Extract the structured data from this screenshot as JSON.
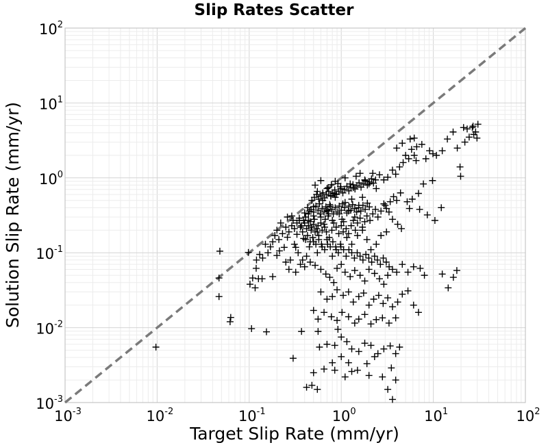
{
  "chart_data": {
    "type": "scatter",
    "title": "Slip Rates Scatter",
    "xlabel": "Target Slip Rate (mm/yr)",
    "ylabel": "Solution Slip Rate (mm/yr)",
    "xscale": "log",
    "yscale": "log",
    "xlim": [
      0.001,
      100
    ],
    "ylim": [
      0.001,
      100
    ],
    "grid": true,
    "marker": "+",
    "marker_color": "#000000",
    "reference_line": {
      "style": "dashed",
      "color": "#7a7a7a",
      "from": [
        0.001,
        0.001
      ],
      "to": [
        100,
        100
      ]
    },
    "x_ticks": [
      {
        "base": "10",
        "exp": "-3"
      },
      {
        "base": "10",
        "exp": "-2"
      },
      {
        "base": "10",
        "exp": "-1"
      },
      {
        "base": "10",
        "exp": "0"
      },
      {
        "base": "10",
        "exp": "1"
      },
      {
        "base": "10",
        "exp": "2"
      }
    ],
    "y_ticks": [
      {
        "base": "10",
        "exp": "-3"
      },
      {
        "base": "10",
        "exp": "-2"
      },
      {
        "base": "10",
        "exp": "-1"
      },
      {
        "base": "10",
        "exp": "0"
      },
      {
        "base": "10",
        "exp": "1"
      },
      {
        "base": "10",
        "exp": "2"
      }
    ],
    "points": [
      [
        0.0097,
        0.0055
      ],
      [
        0.048,
        0.105
      ],
      [
        0.047,
        0.046
      ],
      [
        0.047,
        0.026
      ],
      [
        0.098,
        0.101
      ],
      [
        0.062,
        0.012
      ],
      [
        0.063,
        0.0137
      ],
      [
        0.119,
        0.062
      ],
      [
        0.102,
        0.038
      ],
      [
        0.116,
        0.034
      ],
      [
        0.126,
        0.045
      ],
      [
        0.109,
        0.046
      ],
      [
        0.138,
        0.045
      ],
      [
        0.106,
        0.0097
      ],
      [
        0.154,
        0.0088
      ],
      [
        0.2,
        0.092
      ],
      [
        0.213,
        0.106
      ],
      [
        0.24,
        0.118
      ],
      [
        0.3,
        0.0039
      ],
      [
        0.25,
        0.075
      ],
      [
        0.18,
        0.048
      ],
      [
        0.37,
        0.0089
      ],
      [
        0.56,
        0.0089
      ],
      [
        0.92,
        0.0095
      ],
      [
        0.26,
        0.161
      ],
      [
        0.32,
        0.118
      ],
      [
        0.33,
        0.176
      ],
      [
        0.39,
        0.155
      ],
      [
        0.29,
        0.31
      ],
      [
        0.36,
        0.22
      ],
      [
        0.35,
        0.27
      ],
      [
        0.4,
        0.34
      ],
      [
        0.44,
        0.23
      ],
      [
        0.47,
        0.2
      ],
      [
        0.41,
        0.3
      ],
      [
        0.38,
        0.19
      ],
      [
        0.44,
        0.27
      ],
      [
        0.5,
        0.24
      ],
      [
        0.55,
        0.19
      ],
      [
        0.6,
        0.3
      ],
      [
        0.66,
        0.22
      ],
      [
        0.72,
        0.31
      ],
      [
        0.8,
        0.27
      ],
      [
        0.5,
        0.31
      ],
      [
        0.45,
        0.36
      ],
      [
        0.43,
        0.4
      ],
      [
        0.5,
        0.41
      ],
      [
        0.58,
        0.45
      ],
      [
        0.63,
        0.5
      ],
      [
        0.7,
        0.37
      ],
      [
        0.76,
        0.42
      ],
      [
        0.86,
        0.55
      ],
      [
        0.95,
        0.33
      ],
      [
        1.02,
        0.28
      ],
      [
        1.1,
        0.47
      ],
      [
        1.2,
        0.36
      ],
      [
        1.3,
        0.52
      ],
      [
        1.4,
        0.3
      ],
      [
        1.55,
        0.43
      ],
      [
        1.7,
        0.55
      ],
      [
        0.52,
        0.8
      ],
      [
        0.55,
        0.66
      ],
      [
        0.6,
        0.92
      ],
      [
        0.7,
        0.72
      ],
      [
        0.77,
        0.58
      ],
      [
        0.85,
        0.61
      ],
      [
        0.92,
        0.84
      ],
      [
        0.98,
        0.76
      ],
      [
        1.1,
        1.0
      ],
      [
        1.25,
        0.83
      ],
      [
        1.36,
        0.74
      ],
      [
        1.45,
        1.05
      ],
      [
        1.6,
        1.15
      ],
      [
        1.8,
        0.94
      ],
      [
        2.0,
        0.83
      ],
      [
        2.2,
        1.15
      ],
      [
        2.4,
        0.72
      ],
      [
        2.6,
        1.1
      ],
      [
        2.9,
        0.94
      ],
      [
        3.2,
        1.02
      ],
      [
        3.6,
        1.27
      ],
      [
        3.9,
        1.12
      ],
      [
        4.3,
        1.4
      ],
      [
        4.7,
        1.6
      ],
      [
        5.0,
        2.0
      ],
      [
        5.4,
        1.8
      ],
      [
        5.8,
        2.4
      ],
      [
        6.2,
        2.0
      ],
      [
        6.6,
        2.6
      ],
      [
        5.6,
        3.3
      ],
      [
        4.6,
        2.9
      ],
      [
        4.0,
        2.5
      ],
      [
        6.2,
        3.4
      ],
      [
        6.5,
        1.7
      ],
      [
        7.5,
        2.8
      ],
      [
        8.3,
        1.8
      ],
      [
        9.1,
        2.3
      ],
      [
        9.9,
        2.1
      ],
      [
        10.8,
        2.0
      ],
      [
        12.5,
        2.3
      ],
      [
        14.2,
        3.3
      ],
      [
        16.4,
        4.1
      ],
      [
        18.2,
        2.5
      ],
      [
        19.5,
        1.4
      ],
      [
        21.3,
        4.7
      ],
      [
        23.3,
        4.5
      ],
      [
        24.5,
        3.5
      ],
      [
        27.0,
        4.9
      ],
      [
        28.8,
        4.1
      ],
      [
        29.8,
        3.4
      ],
      [
        30.5,
        5.2
      ],
      [
        26.5,
        4.7
      ],
      [
        22.0,
        3.0
      ],
      [
        27.5,
        3.8
      ],
      [
        19.8,
        1.05
      ],
      [
        9.8,
        0.92
      ],
      [
        7.8,
        0.83
      ],
      [
        6.9,
        0.62
      ],
      [
        5.9,
        0.52
      ],
      [
        5.2,
        0.48
      ],
      [
        5.5,
        0.39
      ],
      [
        7.1,
        0.38
      ],
      [
        8.6,
        0.32
      ],
      [
        10.4,
        0.27
      ],
      [
        12.2,
        0.4
      ],
      [
        3.0,
        0.43
      ],
      [
        3.3,
        0.35
      ],
      [
        3.6,
        0.28
      ],
      [
        4.1,
        0.24
      ],
      [
        4.5,
        0.21
      ],
      [
        3.1,
        0.19
      ],
      [
        2.7,
        0.17
      ],
      [
        2.4,
        0.13
      ],
      [
        2.1,
        0.11
      ],
      [
        1.9,
        0.15
      ],
      [
        1.7,
        0.2
      ],
      [
        1.5,
        0.17
      ],
      [
        1.3,
        0.13
      ],
      [
        1.15,
        0.16
      ],
      [
        1.05,
        0.19
      ],
      [
        0.98,
        0.13
      ],
      [
        0.88,
        0.11
      ],
      [
        0.8,
        0.09
      ],
      [
        0.7,
        0.15
      ],
      [
        0.62,
        0.12
      ],
      [
        0.55,
        0.1
      ],
      [
        0.5,
        0.14
      ],
      [
        0.45,
        0.12
      ],
      [
        0.42,
        0.09
      ],
      [
        0.38,
        0.08
      ],
      [
        0.34,
        0.1
      ],
      [
        0.31,
        0.13
      ],
      [
        0.28,
        0.08
      ],
      [
        0.27,
        0.06
      ],
      [
        0.32,
        0.055
      ],
      [
        0.36,
        0.07
      ],
      [
        0.4,
        0.065
      ],
      [
        0.46,
        0.075
      ],
      [
        0.52,
        0.068
      ],
      [
        0.6,
        0.06
      ],
      [
        0.68,
        0.052
      ],
      [
        0.75,
        0.047
      ],
      [
        0.83,
        0.04
      ],
      [
        0.9,
        0.062
      ],
      [
        1.0,
        0.07
      ],
      [
        1.1,
        0.055
      ],
      [
        1.25,
        0.048
      ],
      [
        1.4,
        0.058
      ],
      [
        1.6,
        0.05
      ],
      [
        1.8,
        0.042
      ],
      [
        2.0,
        0.06
      ],
      [
        2.3,
        0.053
      ],
      [
        2.6,
        0.045
      ],
      [
        2.9,
        0.038
      ],
      [
        3.2,
        0.05
      ],
      [
        3.6,
        0.06
      ],
      [
        4.0,
        0.055
      ],
      [
        4.6,
        0.07
      ],
      [
        5.3,
        0.055
      ],
      [
        6.1,
        0.065
      ],
      [
        7.2,
        0.062
      ],
      [
        8.0,
        0.05
      ],
      [
        12.5,
        0.052
      ],
      [
        14.5,
        0.034
      ],
      [
        16.5,
        0.047
      ],
      [
        18.0,
        0.058
      ],
      [
        0.6,
        0.03
      ],
      [
        0.7,
        0.024
      ],
      [
        0.8,
        0.026
      ],
      [
        0.9,
        0.032
      ],
      [
        1.05,
        0.027
      ],
      [
        1.2,
        0.03
      ],
      [
        1.35,
        0.022
      ],
      [
        1.55,
        0.026
      ],
      [
        1.75,
        0.029
      ],
      [
        2.0,
        0.02
      ],
      [
        2.25,
        0.024
      ],
      [
        2.55,
        0.027
      ],
      [
        2.85,
        0.021
      ],
      [
        3.2,
        0.025
      ],
      [
        3.6,
        0.019
      ],
      [
        4.1,
        0.022
      ],
      [
        4.6,
        0.028
      ],
      [
        5.3,
        0.031
      ],
      [
        6.1,
        0.02
      ],
      [
        6.9,
        0.016
      ],
      [
        0.5,
        0.017
      ],
      [
        0.56,
        0.013
      ],
      [
        0.65,
        0.016
      ],
      [
        0.78,
        0.014
      ],
      [
        0.9,
        0.0125
      ],
      [
        1.02,
        0.016
      ],
      [
        1.2,
        0.014
      ],
      [
        1.4,
        0.0115
      ],
      [
        1.55,
        0.013
      ],
      [
        1.8,
        0.015
      ],
      [
        2.1,
        0.0112
      ],
      [
        2.4,
        0.0128
      ],
      [
        2.8,
        0.0135
      ],
      [
        3.3,
        0.0115
      ],
      [
        3.9,
        0.0135
      ],
      [
        0.58,
        0.0055
      ],
      [
        0.7,
        0.006
      ],
      [
        0.85,
        0.0058
      ],
      [
        1.0,
        0.0075
      ],
      [
        1.15,
        0.0065
      ],
      [
        1.3,
        0.0052
      ],
      [
        1.55,
        0.0048
      ],
      [
        1.8,
        0.0062
      ],
      [
        2.1,
        0.0058
      ],
      [
        2.5,
        0.0045
      ],
      [
        2.9,
        0.0052
      ],
      [
        3.4,
        0.0057
      ],
      [
        3.9,
        0.0045
      ],
      [
        4.3,
        0.0055
      ],
      [
        0.5,
        0.0025
      ],
      [
        0.65,
        0.0028
      ],
      [
        0.8,
        0.0034
      ],
      [
        1.0,
        0.0041
      ],
      [
        1.2,
        0.0034
      ],
      [
        1.5,
        0.0027
      ],
      [
        1.9,
        0.0033
      ],
      [
        2.3,
        0.0041
      ],
      [
        2.8,
        0.0022
      ],
      [
        3.5,
        0.0029
      ],
      [
        3.9,
        0.002
      ],
      [
        0.42,
        0.0016
      ],
      [
        0.48,
        0.0017
      ],
      [
        0.55,
        0.0015
      ],
      [
        0.85,
        0.0027
      ],
      [
        1.1,
        0.0022
      ],
      [
        1.3,
        0.0026
      ],
      [
        2.0,
        0.0023
      ],
      [
        3.2,
        0.0015
      ],
      [
        3.6,
        0.0011
      ],
      [
        0.72,
        0.74
      ],
      [
        0.78,
        0.81
      ],
      [
        0.86,
        0.9
      ],
      [
        0.73,
        0.33
      ],
      [
        0.67,
        0.28
      ],
      [
        0.6,
        0.25
      ],
      [
        0.56,
        0.23
      ],
      [
        0.54,
        0.21
      ],
      [
        0.51,
        0.28
      ],
      [
        0.48,
        0.22
      ],
      [
        0.46,
        0.26
      ],
      [
        0.52,
        0.19
      ],
      [
        0.57,
        0.17
      ],
      [
        0.62,
        0.2
      ],
      [
        0.65,
        0.24
      ],
      [
        0.69,
        0.19
      ],
      [
        0.74,
        0.16
      ],
      [
        0.79,
        0.2
      ],
      [
        0.83,
        0.25
      ],
      [
        0.88,
        0.22
      ],
      [
        0.94,
        0.18
      ],
      [
        1.0,
        0.23
      ],
      [
        1.06,
        0.26
      ],
      [
        1.13,
        0.21
      ],
      [
        1.2,
        0.18
      ],
      [
        1.28,
        0.23
      ],
      [
        1.35,
        0.27
      ],
      [
        1.42,
        0.2
      ],
      [
        1.5,
        0.25
      ],
      [
        1.6,
        0.29
      ],
      [
        1.7,
        0.22
      ],
      [
        1.8,
        0.26
      ],
      [
        1.9,
        0.31
      ],
      [
        2.05,
        0.27
      ],
      [
        2.2,
        0.33
      ],
      [
        2.35,
        0.38
      ],
      [
        2.5,
        0.3
      ],
      [
        2.7,
        0.36
      ],
      [
        2.9,
        0.45
      ],
      [
        3.1,
        0.39
      ],
      [
        3.4,
        0.48
      ],
      [
        3.7,
        0.56
      ],
      [
        4.0,
        0.5
      ],
      [
        4.4,
        0.63
      ],
      [
        0.4,
        0.25
      ],
      [
        0.42,
        0.21
      ],
      [
        0.39,
        0.27
      ],
      [
        0.37,
        0.23
      ],
      [
        0.35,
        0.29
      ],
      [
        0.33,
        0.25
      ],
      [
        0.31,
        0.21
      ],
      [
        0.3,
        0.27
      ],
      [
        0.29,
        0.23
      ],
      [
        0.27,
        0.19
      ],
      [
        0.26,
        0.3
      ],
      [
        0.25,
        0.22
      ],
      [
        0.23,
        0.18
      ],
      [
        0.22,
        0.25
      ],
      [
        0.21,
        0.15
      ],
      [
        0.2,
        0.2
      ],
      [
        0.19,
        0.17
      ],
      [
        0.18,
        0.14
      ],
      [
        0.17,
        0.12
      ],
      [
        0.16,
        0.1
      ],
      [
        0.15,
        0.13
      ],
      [
        0.14,
        0.085
      ],
      [
        0.13,
        0.095
      ],
      [
        0.12,
        0.08
      ],
      [
        0.44,
        0.33
      ],
      [
        0.47,
        0.38
      ],
      [
        0.5,
        0.35
      ],
      [
        0.53,
        0.42
      ],
      [
        0.56,
        0.37
      ],
      [
        0.59,
        0.33
      ],
      [
        0.62,
        0.39
      ],
      [
        0.65,
        0.35
      ],
      [
        0.68,
        0.41
      ],
      [
        0.72,
        0.36
      ],
      [
        0.75,
        0.44
      ],
      [
        0.79,
        0.38
      ],
      [
        0.82,
        0.33
      ],
      [
        0.86,
        0.4
      ],
      [
        0.9,
        0.35
      ],
      [
        0.95,
        0.42
      ],
      [
        1.0,
        0.37
      ],
      [
        1.04,
        0.45
      ],
      [
        1.09,
        0.4
      ],
      [
        1.15,
        0.34
      ],
      [
        1.21,
        0.42
      ],
      [
        1.27,
        0.37
      ],
      [
        1.33,
        0.44
      ],
      [
        1.4,
        0.39
      ],
      [
        1.47,
        0.35
      ],
      [
        1.55,
        0.4
      ],
      [
        1.63,
        0.36
      ],
      [
        1.72,
        0.43
      ],
      [
        1.82,
        0.38
      ],
      [
        1.92,
        0.46
      ],
      [
        2.02,
        0.41
      ],
      [
        0.41,
        0.15
      ],
      [
        0.43,
        0.17
      ],
      [
        0.46,
        0.14
      ],
      [
        0.49,
        0.16
      ],
      [
        0.53,
        0.13
      ],
      [
        0.57,
        0.15
      ],
      [
        0.61,
        0.13
      ],
      [
        0.66,
        0.11
      ],
      [
        0.71,
        0.13
      ],
      [
        0.76,
        0.12
      ],
      [
        0.81,
        0.14
      ],
      [
        0.87,
        0.12
      ],
      [
        0.93,
        0.1
      ],
      [
        0.99,
        0.12
      ],
      [
        1.06,
        0.11
      ],
      [
        1.13,
        0.09
      ],
      [
        1.21,
        0.11
      ],
      [
        1.3,
        0.1
      ],
      [
        1.39,
        0.085
      ],
      [
        1.49,
        0.1
      ],
      [
        1.6,
        0.09
      ],
      [
        1.72,
        0.08
      ],
      [
        1.85,
        0.095
      ],
      [
        1.99,
        0.085
      ],
      [
        2.14,
        0.075
      ],
      [
        2.3,
        0.09
      ],
      [
        2.47,
        0.08
      ],
      [
        2.66,
        0.07
      ],
      [
        2.86,
        0.085
      ],
      [
        3.08,
        0.075
      ],
      [
        3.31,
        0.065
      ],
      [
        0.48,
        0.5
      ],
      [
        0.51,
        0.55
      ],
      [
        0.54,
        0.6
      ],
      [
        0.57,
        0.52
      ],
      [
        0.6,
        0.57
      ],
      [
        0.63,
        0.63
      ],
      [
        0.66,
        0.54
      ],
      [
        0.69,
        0.6
      ],
      [
        0.73,
        0.66
      ],
      [
        0.77,
        0.57
      ],
      [
        0.81,
        0.63
      ],
      [
        0.85,
        0.69
      ],
      [
        0.89,
        0.6
      ],
      [
        0.94,
        0.66
      ],
      [
        0.99,
        0.72
      ],
      [
        1.04,
        0.63
      ],
      [
        1.09,
        0.7
      ],
      [
        1.15,
        0.77
      ],
      [
        1.21,
        0.67
      ],
      [
        1.27,
        0.74
      ],
      [
        1.34,
        0.81
      ],
      [
        1.41,
        0.71
      ],
      [
        1.48,
        0.78
      ],
      [
        1.56,
        0.86
      ],
      [
        1.64,
        0.75
      ],
      [
        1.73,
        0.83
      ],
      [
        1.82,
        0.91
      ],
      [
        1.92,
        0.8
      ],
      [
        2.02,
        0.88
      ],
      [
        2.13,
        0.97
      ],
      [
        2.24,
        0.85
      ],
      [
        2.36,
        0.94
      ]
    ]
  }
}
